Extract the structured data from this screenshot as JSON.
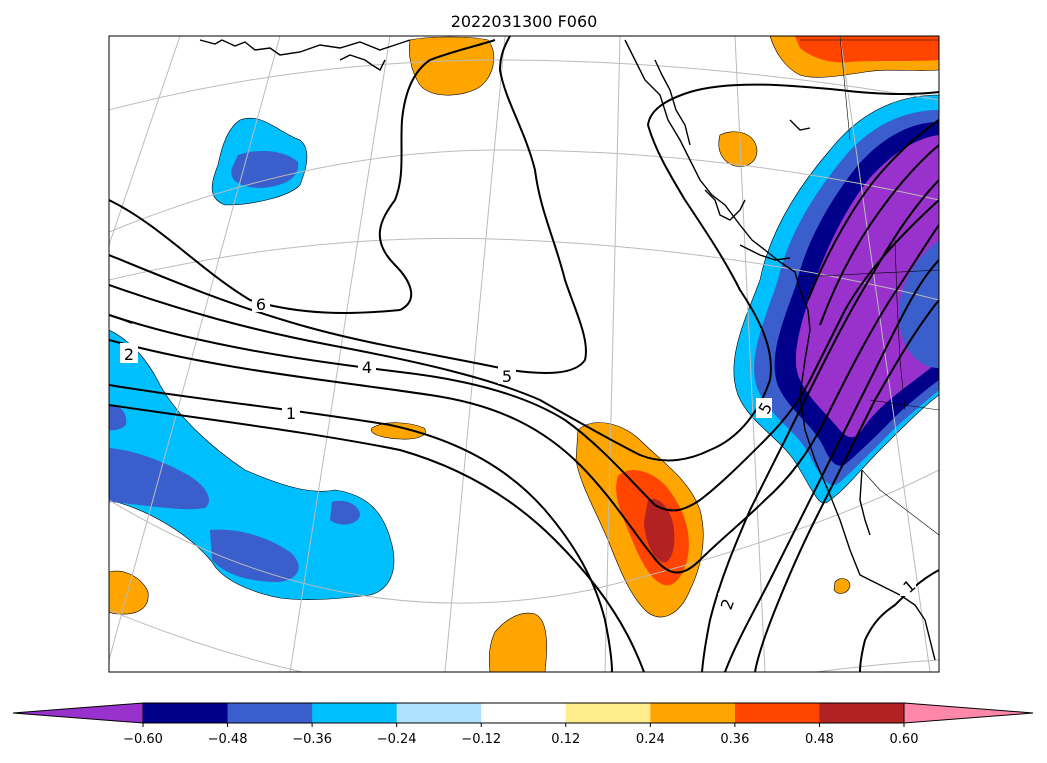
{
  "map": {
    "title": "2022031300 F060",
    "contour_labels": [
      "6",
      "4",
      "5",
      "2",
      "1",
      "5",
      "2",
      "1"
    ]
  },
  "colorbar": {
    "extend": "both",
    "tick_labels": [
      "−0.60",
      "−0.48",
      "−0.36",
      "−0.24",
      "−0.12",
      "0.12",
      "0.24",
      "0.36",
      "0.48",
      "0.60"
    ],
    "colors": {
      "under": "#9932CC",
      "bins": [
        "#00008B",
        "#3A5FCD",
        "#00BFFF",
        "#B0E2FF",
        "#FFFFFF",
        "#FFEC8B",
        "#FFA500",
        "#FF4500",
        "#B22222"
      ],
      "over": "#FF88AA"
    }
  },
  "colors": {
    "land_outline": "#000000",
    "graticule": "#BBBBBB",
    "contour": "#000000"
  }
}
